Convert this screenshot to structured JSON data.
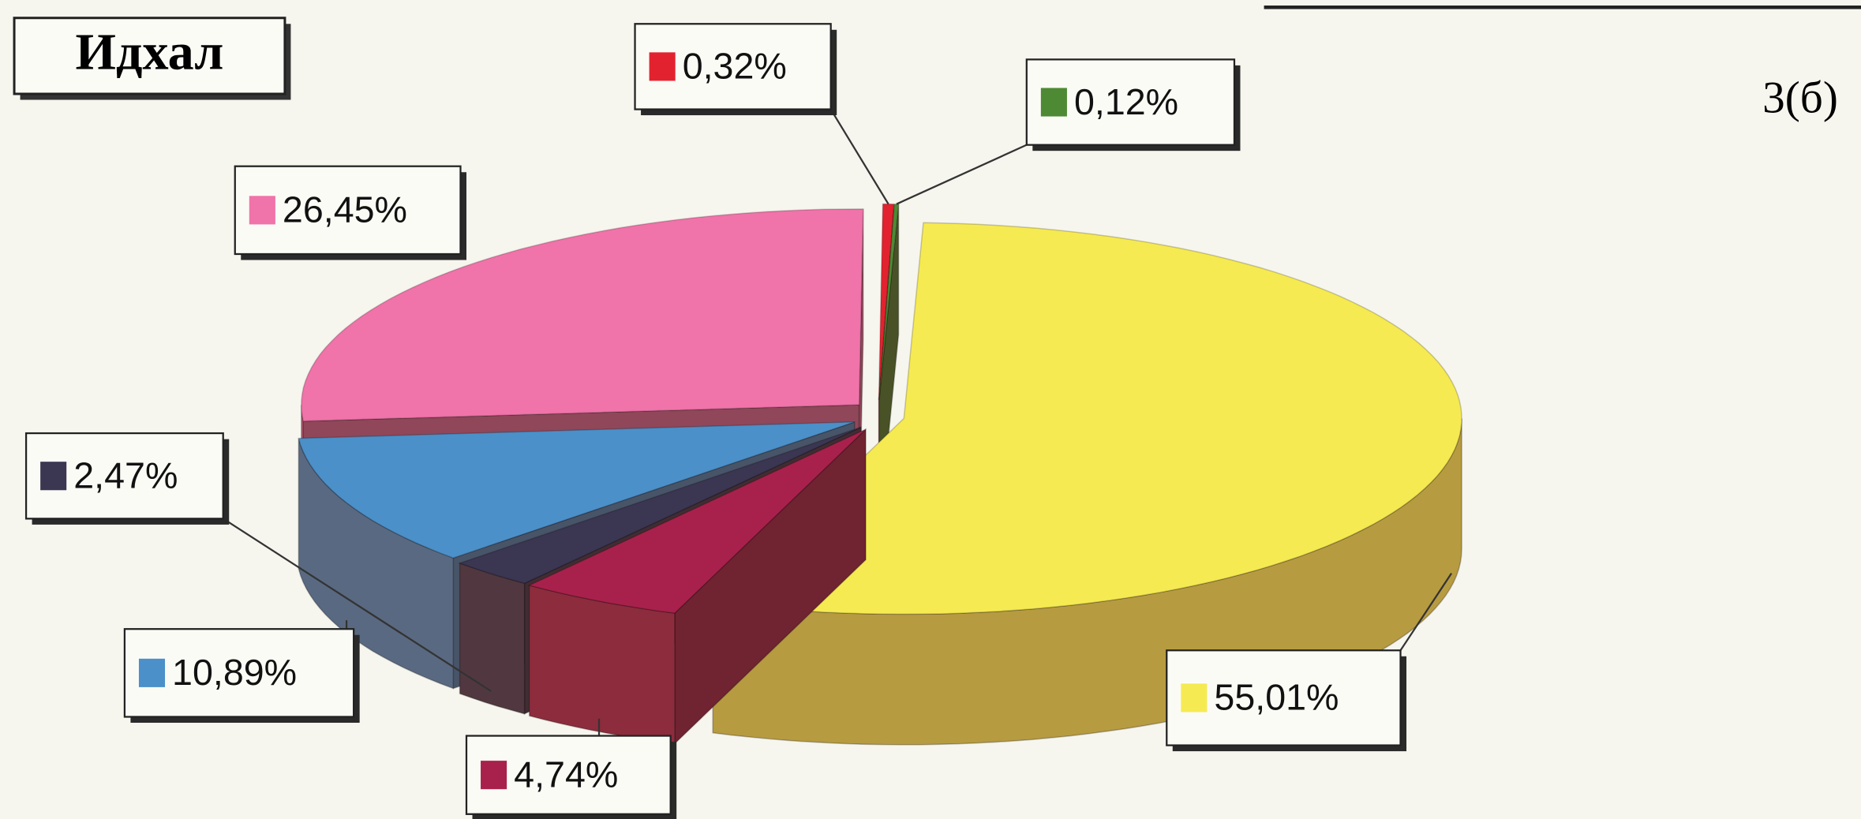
{
  "chart_data": {
    "type": "pie3d",
    "title": "Идхал",
    "annotation": "3(б)",
    "values": [
      55.01,
      4.74,
      2.47,
      10.89,
      26.45,
      0.32,
      0.12
    ],
    "value_labels": [
      "55,01%",
      "4,74%",
      "2,47%",
      "10,89%",
      "26,45%",
      "0,32%",
      "0,12%"
    ],
    "colors": [
      "#f6ea52",
      "#a8214c",
      "#3b3652",
      "#4b90c9",
      "#f073a9",
      "#e3222f",
      "#4e8a34"
    ]
  }
}
